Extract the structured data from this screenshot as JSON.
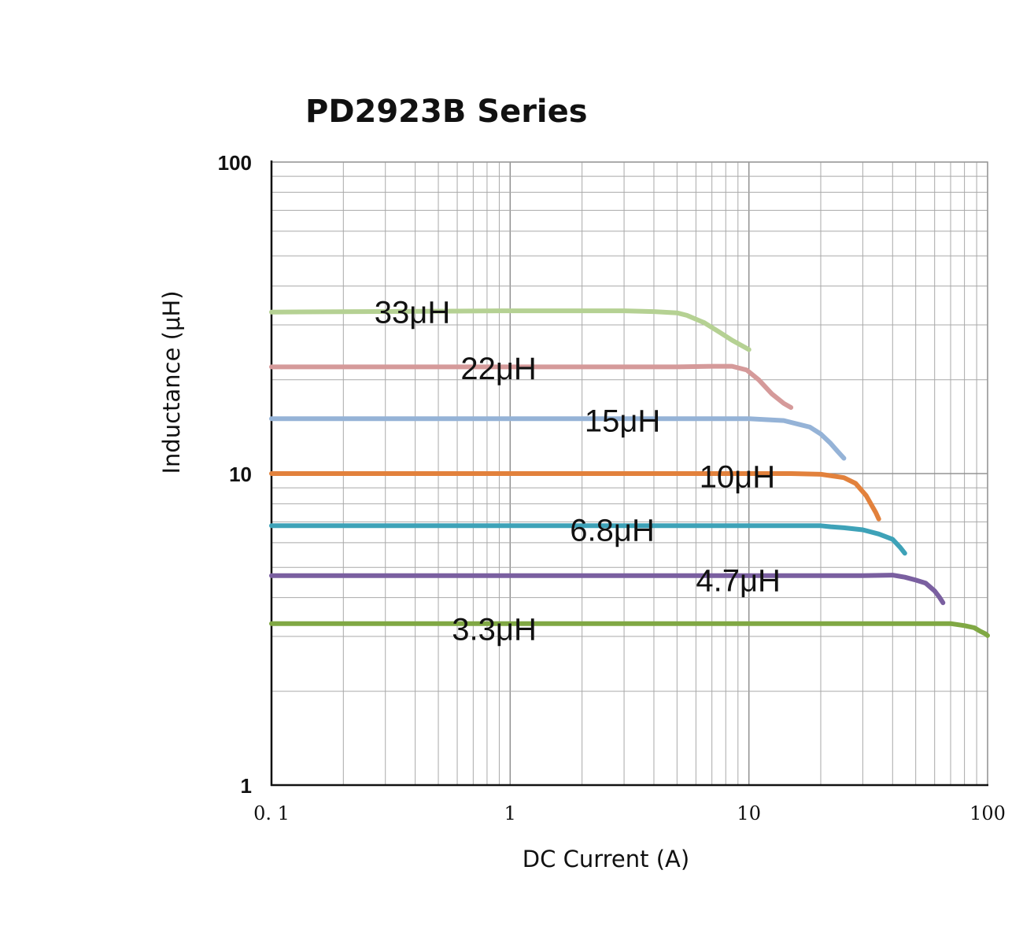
{
  "chart_data": {
    "type": "line",
    "title": "PD2923B Series",
    "xlabel": "DC Current (A)",
    "ylabel": "Inductance (μH)",
    "xscale": "log",
    "yscale": "log",
    "xlim": [
      0.1,
      100
    ],
    "ylim": [
      1,
      100
    ],
    "grid": true,
    "x_tick_labels": [
      {
        "value": 0.1,
        "label": "0. 1"
      },
      {
        "value": 1,
        "label": "1"
      },
      {
        "value": 10,
        "label": "10"
      },
      {
        "value": 100,
        "label": "100"
      }
    ],
    "y_tick_labels": [
      {
        "value": 1,
        "label": "1"
      },
      {
        "value": 10,
        "label": "10"
      },
      {
        "value": 100,
        "label": "100"
      }
    ],
    "series": [
      {
        "name": "33μH",
        "label": "33μH",
        "label_at": [
          0.27,
          33
        ],
        "color": "#b5d193",
        "x": [
          0.1,
          0.5,
          1,
          2,
          3,
          4,
          5,
          5.5,
          6.5,
          7.5,
          8.5,
          10
        ],
        "y": [
          33,
          33.2,
          33.3,
          33.3,
          33.3,
          33.1,
          32.8,
          32.2,
          30.5,
          28.5,
          26.8,
          25.0
        ]
      },
      {
        "name": "22μH",
        "label": "22μH",
        "label_at": [
          0.62,
          21.8
        ],
        "color": "#d59a9a",
        "x": [
          0.1,
          1,
          3,
          5,
          7,
          8.5,
          9.8,
          11,
          12.5,
          14,
          15
        ],
        "y": [
          22,
          22,
          22,
          22,
          22.1,
          22.1,
          21.5,
          20.0,
          18.0,
          16.8,
          16.3
        ]
      },
      {
        "name": "15μH",
        "label": "15μH",
        "label_at": [
          2.05,
          14.8
        ],
        "color": "#95b3d7",
        "x": [
          0.1,
          1,
          5,
          10,
          14,
          18,
          20,
          22,
          23.5,
          25
        ],
        "y": [
          15,
          15,
          15,
          15,
          14.8,
          14.1,
          13.4,
          12.5,
          11.8,
          11.2
        ]
      },
      {
        "name": "10μH",
        "label": "10μH",
        "label_at": [
          6.2,
          9.8
        ],
        "color": "#e2813c",
        "x": [
          0.1,
          1,
          5,
          10,
          15,
          20,
          25,
          28,
          31,
          34,
          35
        ],
        "y": [
          10,
          10,
          10,
          10,
          10,
          9.95,
          9.7,
          9.3,
          8.5,
          7.5,
          7.15
        ]
      },
      {
        "name": "6.8μH",
        "label": "6.8μH",
        "label_at": [
          1.78,
          6.6
        ],
        "color": "#3ea2b8",
        "x": [
          0.1,
          1,
          5,
          10,
          15,
          20,
          22,
          25,
          30,
          35,
          40,
          43,
          45
        ],
        "y": [
          6.8,
          6.8,
          6.8,
          6.8,
          6.8,
          6.8,
          6.75,
          6.7,
          6.6,
          6.4,
          6.15,
          5.8,
          5.55
        ]
      },
      {
        "name": "4.7μH",
        "label": "4.7μH",
        "label_at": [
          6.0,
          4.55
        ],
        "color": "#7a5fa0",
        "x": [
          0.1,
          1,
          10,
          30,
          40,
          45,
          50,
          55,
          60,
          63,
          65
        ],
        "y": [
          4.7,
          4.7,
          4.7,
          4.7,
          4.72,
          4.65,
          4.55,
          4.45,
          4.2,
          4.0,
          3.85
        ]
      },
      {
        "name": "3.3μH",
        "label": "3.3μH",
        "label_at": [
          0.57,
          3.17
        ],
        "color": "#80a844",
        "x": [
          0.1,
          1,
          10,
          50,
          70,
          80,
          88,
          93,
          98,
          100
        ],
        "y": [
          3.3,
          3.3,
          3.3,
          3.3,
          3.3,
          3.25,
          3.2,
          3.12,
          3.06,
          3.02
        ]
      }
    ]
  }
}
